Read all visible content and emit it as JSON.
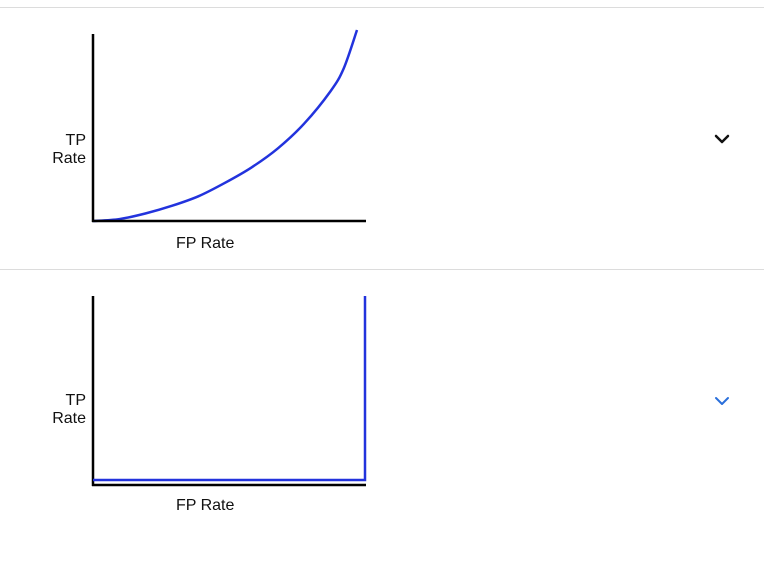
{
  "options": [
    {
      "chart_data": {
        "type": "line",
        "xlabel": "FP Rate",
        "ylabel_lines": [
          "TP",
          "Rate"
        ],
        "xlim": [
          0,
          1
        ],
        "ylim": [
          0,
          1
        ],
        "series": [
          {
            "x": [
              0,
              0.1,
              0.2,
              0.3,
              0.4,
              0.5,
              0.6,
              0.7,
              0.8,
              0.9,
              0.95,
              1.0
            ],
            "y": [
              0,
              0.01,
              0.04,
              0.08,
              0.13,
              0.2,
              0.28,
              0.38,
              0.51,
              0.68,
              0.8,
              1.0
            ]
          }
        ]
      },
      "chevron_icon": "chevron-down-icon",
      "chevron_color": "#111111"
    },
    {
      "chart_data": {
        "type": "line",
        "xlabel": "FP Rate",
        "ylabel_lines": [
          "TP",
          "Rate"
        ],
        "xlim": [
          0,
          1
        ],
        "ylim": [
          0,
          1
        ],
        "series": [
          {
            "x": [
              0,
              1,
              1
            ],
            "y": [
              0,
              0,
              1
            ]
          }
        ]
      },
      "chevron_icon": "chevron-down-icon",
      "chevron_color": "#2a6fdb"
    }
  ],
  "colors": {
    "curve": "#2233dd",
    "axis": "#000000",
    "divider": "#dcdcdc"
  }
}
